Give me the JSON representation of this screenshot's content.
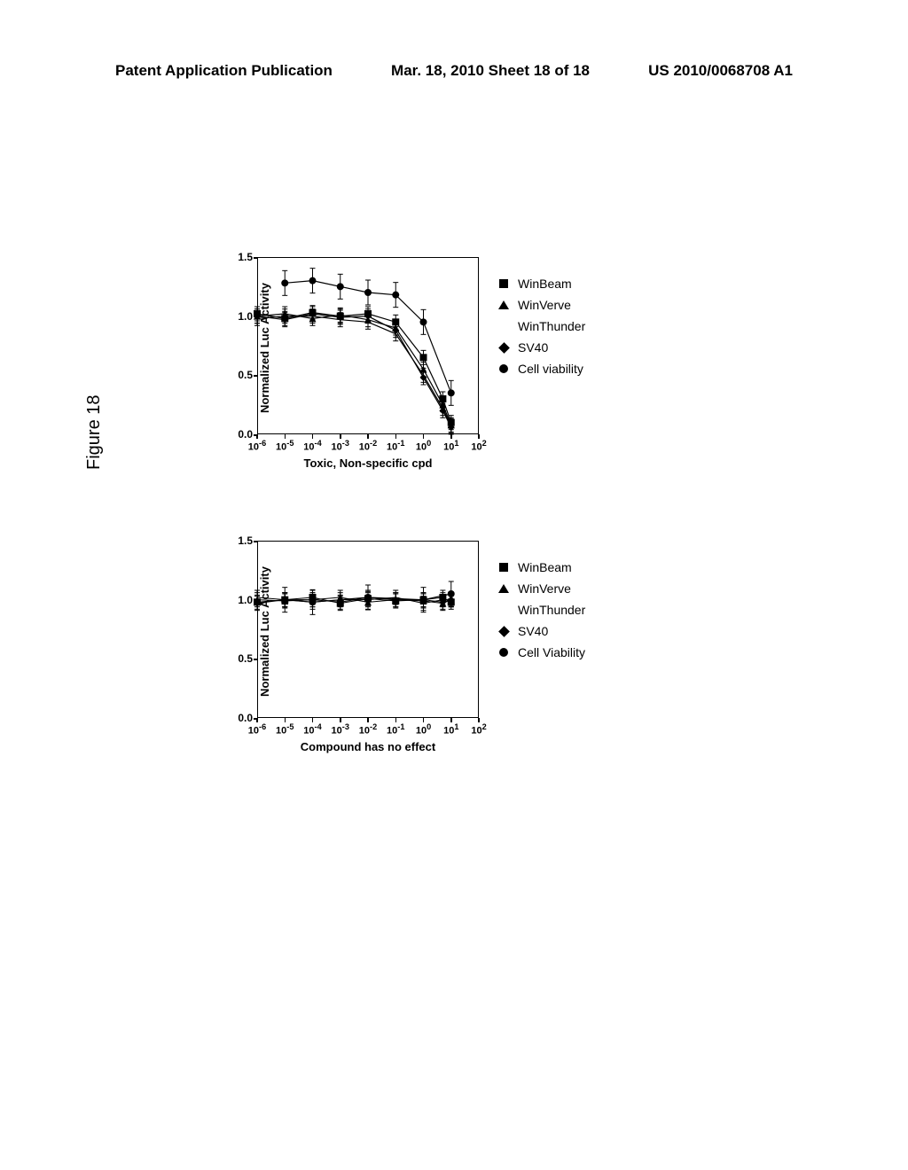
{
  "header": {
    "left": "Patent Application Publication",
    "center": "Mar. 18, 2010  Sheet 18 of 18",
    "right": "US 2010/0068708 A1"
  },
  "figure_label": "Figure 18",
  "chart_common": {
    "y_label": "Normalized Luc Activity",
    "y_ticks": [
      0.0,
      0.5,
      1.0,
      1.5
    ],
    "x_exponents": [
      -6,
      -5,
      -4,
      -3,
      -2,
      -1,
      0,
      1,
      2
    ],
    "title_fontsize": 13,
    "tick_fontsize": 12,
    "background": "#ffffff",
    "axis_color": "#000000"
  },
  "legend_items": [
    {
      "marker": "square",
      "label": "WinBeam"
    },
    {
      "marker": "triangle",
      "label": "WinVerve"
    },
    {
      "marker": "none",
      "label": "WinThunder"
    },
    {
      "marker": "diamond",
      "label": "SV40"
    },
    {
      "marker": "circle",
      "label": "Cell viability"
    }
  ],
  "legend_items_bottom": [
    {
      "marker": "square",
      "label": "WinBeam"
    },
    {
      "marker": "triangle",
      "label": "WinVerve"
    },
    {
      "marker": "none",
      "label": "WinThunder"
    },
    {
      "marker": "diamond",
      "label": "SV40"
    },
    {
      "marker": "circle",
      "label": "Cell Viability"
    }
  ],
  "chart_top": {
    "x_label": "Toxic, Non-specific cpd",
    "series": {
      "winbeam": {
        "marker": "square",
        "color": "#000000",
        "x": [
          -6,
          -5,
          -4,
          -3,
          -2,
          -1,
          0,
          0.7,
          1
        ],
        "y": [
          1.02,
          0.98,
          1.03,
          1.0,
          1.02,
          0.95,
          0.65,
          0.3,
          0.1
        ]
      },
      "winverve": {
        "marker": "triangle",
        "color": "#000000",
        "x": [
          -6,
          -5,
          -4,
          -3,
          -2,
          -1,
          0,
          0.7,
          1
        ],
        "y": [
          1.0,
          1.02,
          0.98,
          1.01,
          0.97,
          0.9,
          0.55,
          0.25,
          0.08
        ]
      },
      "winthunder": {
        "marker": "none",
        "color": "#000000",
        "x": [
          -6,
          -5,
          -4,
          -3,
          -2,
          -1,
          0,
          0.7,
          1
        ],
        "y": [
          0.98,
          1.0,
          1.0,
          0.97,
          0.95,
          0.85,
          0.5,
          0.22,
          0.07
        ]
      },
      "sv40": {
        "marker": "diamond",
        "color": "#000000",
        "x": [
          -6,
          -5,
          -4,
          -3,
          -2,
          -1,
          0,
          0.7,
          1
        ],
        "y": [
          1.0,
          0.97,
          1.02,
          0.99,
          1.0,
          0.88,
          0.48,
          0.2,
          0.06
        ]
      },
      "viability": {
        "marker": "circle",
        "color": "#000000",
        "x": [
          -5,
          -4,
          -3,
          -2,
          -1,
          0,
          1
        ],
        "y": [
          1.28,
          1.3,
          1.25,
          1.2,
          1.18,
          0.95,
          0.35
        ]
      }
    }
  },
  "chart_bottom": {
    "x_label": "Compound has no effect",
    "series": {
      "winbeam": {
        "marker": "square",
        "color": "#000000",
        "x": [
          -6,
          -5,
          -4,
          -3,
          -2,
          -1,
          0,
          0.7,
          1
        ],
        "y": [
          0.98,
          1.0,
          1.02,
          0.97,
          1.01,
          0.99,
          1.0,
          1.02,
          0.98
        ]
      },
      "winverve": {
        "marker": "triangle",
        "color": "#000000",
        "x": [
          -6,
          -5,
          -4,
          -3,
          -2,
          -1,
          0,
          0.7,
          1
        ],
        "y": [
          1.0,
          0.99,
          1.0,
          1.02,
          0.98,
          1.0,
          0.99,
          0.97,
          1.0
        ]
      },
      "winthunder": {
        "marker": "none",
        "color": "#000000",
        "x": [
          -6,
          -5,
          -4,
          -3,
          -2,
          -1,
          0,
          0.7,
          1
        ],
        "y": [
          1.02,
          1.0,
          0.98,
          1.0,
          1.0,
          1.02,
          0.97,
          1.0,
          1.0
        ]
      },
      "sv40": {
        "marker": "diamond",
        "color": "#000000",
        "x": [
          -6,
          -5,
          -4,
          -3,
          -2,
          -1,
          0,
          0.7,
          1
        ],
        "y": [
          0.97,
          1.0,
          1.0,
          0.98,
          1.02,
          1.0,
          1.0,
          0.98,
          1.0
        ]
      },
      "viability": {
        "marker": "circle",
        "color": "#000000",
        "x": [
          -5,
          -4,
          -2,
          0,
          1
        ],
        "y": [
          1.0,
          0.98,
          1.02,
          1.0,
          1.05
        ]
      }
    }
  }
}
